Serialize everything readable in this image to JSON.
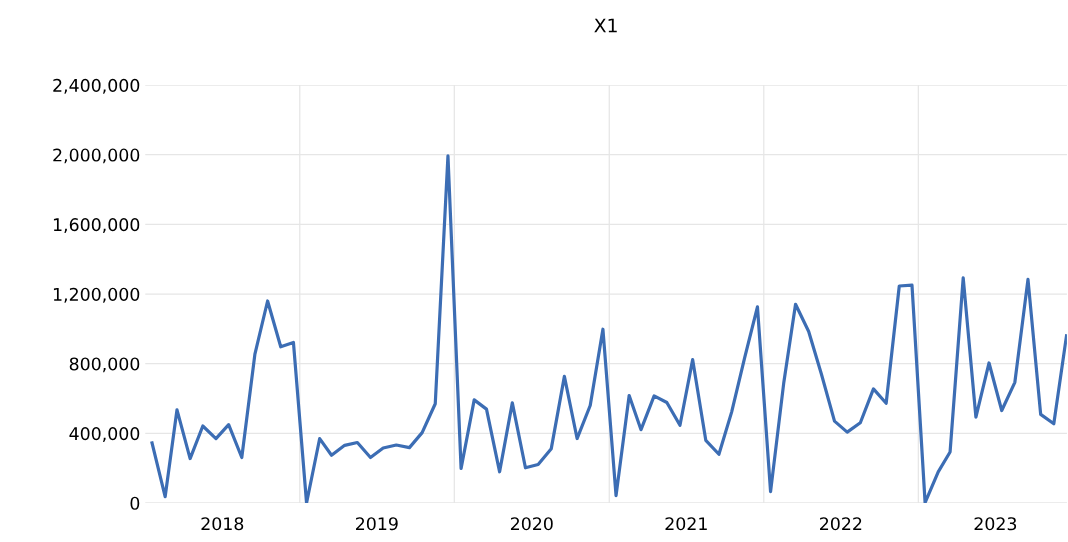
{
  "chart_data": {
    "type": "line",
    "title": "X1",
    "x": [
      "2018-01",
      "2018-02",
      "2018-03",
      "2018-04",
      "2018-05",
      "2018-06",
      "2018-07",
      "2018-08",
      "2018-09",
      "2018-10",
      "2018-11",
      "2018-12",
      "2019-01",
      "2019-02",
      "2019-03",
      "2019-04",
      "2019-05",
      "2019-06",
      "2019-07",
      "2019-08",
      "2019-09",
      "2019-10",
      "2019-11",
      "2019-12",
      "2020-01",
      "2020-02",
      "2020-03",
      "2020-04",
      "2020-05",
      "2020-06",
      "2020-07",
      "2020-08",
      "2020-09",
      "2020-10",
      "2020-11",
      "2020-12",
      "2021-01",
      "2021-02",
      "2021-03",
      "2021-04",
      "2021-05",
      "2021-06",
      "2021-07",
      "2021-08",
      "2021-09",
      "2021-10",
      "2021-11",
      "2021-12",
      "2022-01",
      "2022-02",
      "2022-03",
      "2022-04",
      "2022-05",
      "2022-06",
      "2022-07",
      "2022-08",
      "2022-09",
      "2022-10",
      "2022-11",
      "2022-12",
      "2023-01",
      "2023-02",
      "2023-03",
      "2023-04",
      "2023-05",
      "2023-06",
      "2023-07",
      "2023-08",
      "2023-09",
      "2023-10",
      "2023-11",
      "2023-12"
    ],
    "series": [
      {
        "color": "#3c6db4",
        "values": [
          345000,
          36000,
          535000,
          255000,
          442000,
          370000,
          450000,
          261000,
          855000,
          1160000,
          897000,
          922000,
          0,
          370000,
          274000,
          331000,
          347000,
          261000,
          316000,
          333000,
          318000,
          404000,
          570000,
          1994000,
          198000,
          592000,
          539000,
          179000,
          575000,
          202000,
          221000,
          312000,
          727000,
          370000,
          560000,
          998000,
          42000,
          617000,
          421000,
          615000,
          577000,
          446000,
          823000,
          360000,
          280000,
          522000,
          836000,
          1126000,
          65000,
          687000,
          1141000,
          985000,
          741000,
          470000,
          407000,
          461000,
          655000,
          573000,
          1246000,
          1251000,
          2000,
          179000,
          293000,
          1293000,
          493000,
          804000,
          531000,
          693000,
          1284000,
          509000,
          455000,
          960000
        ]
      }
    ],
    "xlim": [
      "2017-12-16",
      "2023-12-02"
    ],
    "xticks": [
      {
        "value": "2018-06-16",
        "label": "2018"
      },
      {
        "value": "2018-12-16",
        "label": null
      },
      {
        "value": "2019-06-16",
        "label": "2019"
      },
      {
        "value": "2019-12-16",
        "label": null
      },
      {
        "value": "2020-06-16",
        "label": "2020"
      },
      {
        "value": "2020-12-16",
        "label": null
      },
      {
        "value": "2021-06-16",
        "label": "2021"
      },
      {
        "value": "2021-12-16",
        "label": null
      },
      {
        "value": "2022-06-16",
        "label": "2022"
      },
      {
        "value": "2022-12-16",
        "label": null
      },
      {
        "value": "2023-06-16",
        "label": "2023"
      }
    ],
    "ylim": [
      0,
      2400000
    ],
    "yticks": [
      {
        "value": 0,
        "label": "0"
      },
      {
        "value": 400000,
        "label": "400,000"
      },
      {
        "value": 800000,
        "label": "800,000"
      },
      {
        "value": 1200000,
        "label": "1,200,000"
      },
      {
        "value": 1600000,
        "label": "1,600,000"
      },
      {
        "value": 2000000,
        "label": "2,000,000"
      },
      {
        "value": 2400000,
        "label": "2,400,000"
      }
    ],
    "grid": true,
    "marker": "none",
    "line_style": "solid"
  }
}
